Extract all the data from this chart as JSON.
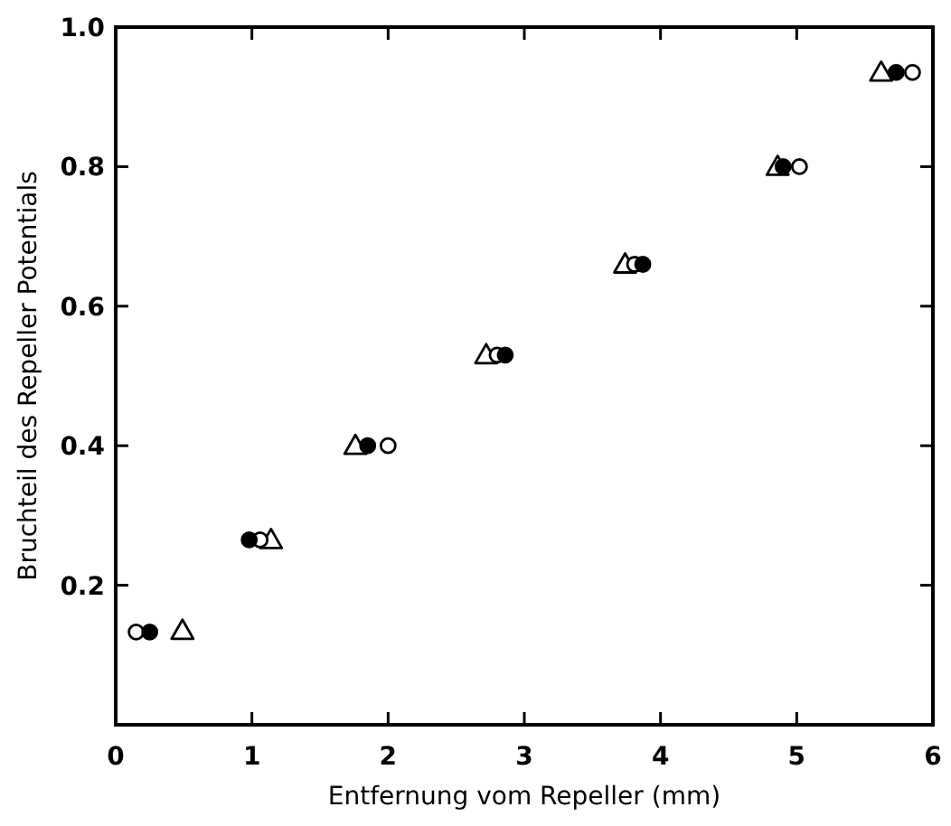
{
  "chart_data": {
    "type": "scatter",
    "xlabel": "Entfernung vom Repeller (mm)",
    "ylabel": "Bruchteil des Repeller Potentials",
    "xlim": [
      0,
      6
    ],
    "xticks": [
      0,
      1,
      2,
      3,
      4,
      5,
      6
    ],
    "ylim": [
      0,
      1
    ],
    "yticks": [
      0.2,
      0.4,
      0.6,
      0.8,
      {
        "value": 1,
        "label": "1.0"
      }
    ],
    "grid": false,
    "series": [
      {
        "color": "#000000",
        "marker": "circle",
        "x": [
          0.25,
          0.98,
          1.85,
          2.86,
          3.87,
          4.9,
          5.73
        ],
        "values": [
          0.133,
          0.265,
          0.4,
          0.53,
          0.66,
          0.8,
          0.935
        ]
      },
      {
        "color": "#ffffff",
        "marker": "circle",
        "x": [
          0.15,
          1.06,
          2.0,
          2.8,
          3.81,
          5.02,
          5.85
        ],
        "values": [
          0.133,
          0.265,
          0.4,
          0.53,
          0.66,
          0.8,
          0.935
        ]
      },
      {
        "color": "#ffffff",
        "marker": "triangle",
        "x": [
          0.49,
          1.14,
          1.76,
          2.72,
          3.74,
          4.86,
          5.62
        ],
        "values": [
          0.135,
          0.265,
          0.4,
          0.53,
          0.66,
          0.8,
          0.935
        ]
      }
    ]
  }
}
